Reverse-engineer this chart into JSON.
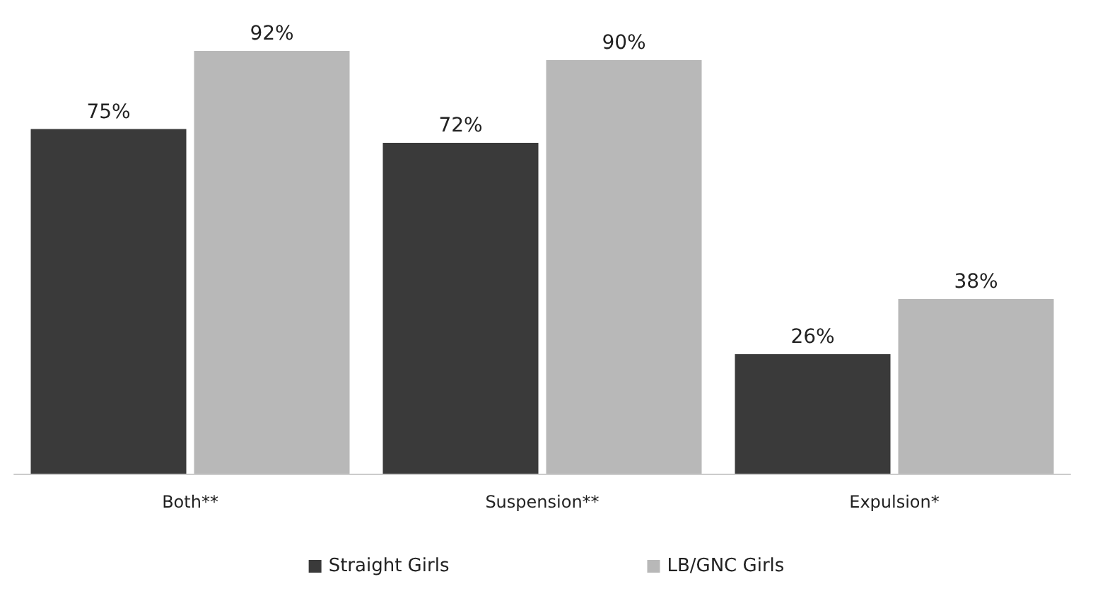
{
  "chart_data": {
    "type": "bar",
    "categories": [
      "Both**",
      "Suspension**",
      "Expulsion*"
    ],
    "series": [
      {
        "name": "Straight Girls",
        "color": "#3a3a3a",
        "values": [
          75,
          72,
          26
        ],
        "value_labels": [
          "75%",
          "72%",
          "26%"
        ]
      },
      {
        "name": "LB/GNC Girls",
        "color": "#b8b8b8",
        "values": [
          92,
          90,
          38
        ],
        "value_labels": [
          "92%",
          "90%",
          "38%"
        ]
      }
    ],
    "legend": "bottom",
    "grid": false
  }
}
